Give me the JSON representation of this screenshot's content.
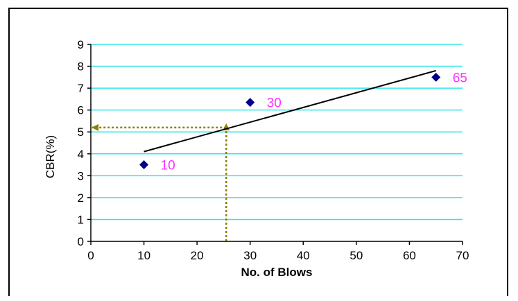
{
  "chart_data": {
    "type": "scatter",
    "title": "",
    "xlabel": "No. of Blows",
    "ylabel": "CBR(%)",
    "xlim": [
      0,
      70
    ],
    "ylim": [
      0,
      9
    ],
    "xticks": [
      0,
      10,
      20,
      30,
      40,
      50,
      60,
      70
    ],
    "yticks": [
      0,
      1,
      2,
      3,
      4,
      5,
      6,
      7,
      8,
      9
    ],
    "grid": "horizontal",
    "series": [
      {
        "marker": "diamond",
        "color": "#00008b",
        "points": [
          {
            "x": 10,
            "y": 3.5,
            "label": "10"
          },
          {
            "x": 30,
            "y": 6.35,
            "label": "30"
          },
          {
            "x": 65,
            "y": 7.5,
            "label": "65"
          }
        ]
      }
    ],
    "trendline": {
      "x": [
        10,
        65
      ],
      "y": [
        4.1,
        7.8
      ],
      "color": "#000000"
    },
    "reference": {
      "x": 25.5,
      "y": 5.2,
      "color": "#8b8000",
      "style": "dotted"
    },
    "colors": {
      "grid": "#33e6e6",
      "axis": "#000000",
      "label": "#ff33ff",
      "marker": "#00008b",
      "reference": "#8b8000"
    }
  }
}
